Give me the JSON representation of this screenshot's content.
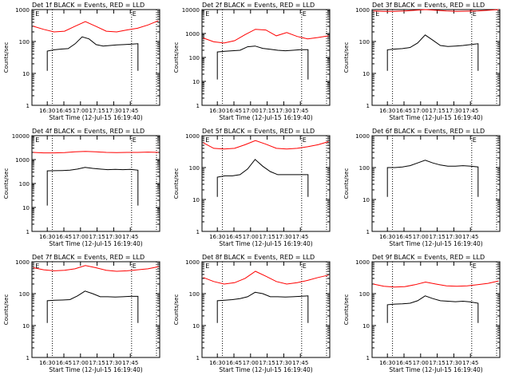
{
  "chart_data": [
    {
      "type": "line",
      "title": "Det 1f BLACK = Events, RED = LLD",
      "xlabel": "Start Time (12-Jul-15 16:19:40)",
      "ylabel": "Counts/sec",
      "yscale": "log",
      "ylim": [
        1,
        1000
      ],
      "xticks": [
        "16:30",
        "16:45",
        "17:00",
        "17:15",
        "17:30",
        "17:45"
      ],
      "annotations": [
        "E",
        "E"
      ],
      "series": [
        {
          "name": "Events",
          "color": "#000000",
          "values": [
            50,
            55,
            58,
            60,
            85,
            140,
            120,
            80,
            72,
            75,
            78,
            80,
            82,
            85
          ]
        },
        {
          "name": "LLD",
          "color": "#ff0000",
          "values": [
            300,
            240,
            200,
            210,
            300,
            420,
            300,
            210,
            200,
            230,
            260,
            330,
            450
          ]
        }
      ]
    },
    {
      "type": "line",
      "title": "Det 2f BLACK = Events, RED = LLD",
      "xlabel": "Start Time (12-Jul-15 16:19:40)",
      "ylabel": "Counts/sec",
      "yscale": "log",
      "ylim": [
        1,
        10000
      ],
      "xticks": [
        "16:30",
        "16:45",
        "17:00",
        "17:15",
        "17:30",
        "17:45"
      ],
      "annotations": [
        "E",
        "E"
      ],
      "series": [
        {
          "name": "Events",
          "color": "#000000",
          "values": [
            170,
            180,
            190,
            200,
            280,
            300,
            240,
            220,
            200,
            190,
            200,
            210,
            210
          ]
        },
        {
          "name": "LLD",
          "color": "#ff0000",
          "values": [
            650,
            450,
            400,
            500,
            900,
            1500,
            1400,
            800,
            1100,
            750,
            600,
            680,
            800
          ]
        }
      ]
    },
    {
      "type": "line",
      "title": "Det 3f BLACK = Events, RED = LLD",
      "xlabel": "Start Time (12-Jul-15 16:19:40)",
      "ylabel": "Counts/sec",
      "yscale": "log",
      "ylim": [
        1,
        1000
      ],
      "xticks": [
        "16:30",
        "16:45",
        "17:00",
        "17:15",
        "17:30",
        "17:45"
      ],
      "annotations": [
        "E",
        "E"
      ],
      "series": [
        {
          "name": "Events",
          "color": "#000000",
          "values": [
            55,
            58,
            60,
            65,
            90,
            160,
            110,
            75,
            70,
            72,
            75,
            80,
            85
          ]
        },
        {
          "name": "LLD",
          "color": "#ff0000",
          "values": [
            900,
            880,
            880,
            900,
            950,
            1000,
            950,
            900,
            880,
            890,
            900,
            950,
            1000
          ]
        }
      ]
    },
    {
      "type": "line",
      "title": "Det 4f BLACK = Events, RED = LLD",
      "xlabel": "Start Time (12-Jul-15 16:19:40)",
      "ylabel": "Counts/sec",
      "yscale": "log",
      "ylim": [
        1,
        10000
      ],
      "xticks": [
        "16:30",
        "16:45",
        "17:00",
        "17:15",
        "17:30",
        "17:45"
      ],
      "annotations": [
        "E",
        "E"
      ],
      "series": [
        {
          "name": "Events",
          "color": "#000000",
          "values": [
            340,
            345,
            350,
            360,
            400,
            470,
            430,
            400,
            380,
            390,
            380,
            390,
            360
          ]
        },
        {
          "name": "LLD",
          "color": "#ff0000",
          "values": [
            2000,
            1900,
            1900,
            1950,
            2100,
            2200,
            2100,
            2000,
            1950,
            2000,
            2000,
            2050,
            2000
          ]
        }
      ]
    },
    {
      "type": "line",
      "title": "Det 5f BLACK = Events, RED = LLD",
      "xlabel": "Start Time (12-Jul-15 16:19:40)",
      "ylabel": "Counts/sec",
      "yscale": "log",
      "ylim": [
        1,
        1000
      ],
      "xticks": [
        "16:30",
        "16:45",
        "17:00",
        "17:15",
        "17:30",
        "17:45"
      ],
      "annotations": [
        "E",
        "E"
      ],
      "series": [
        {
          "name": "Events",
          "color": "#000000",
          "values": [
            50,
            55,
            55,
            60,
            90,
            180,
            110,
            75,
            60,
            60,
            60,
            60,
            60
          ]
        },
        {
          "name": "LLD",
          "color": "#ff0000",
          "values": [
            600,
            400,
            380,
            400,
            520,
            700,
            540,
            400,
            380,
            400,
            450,
            520,
            650
          ]
        }
      ]
    },
    {
      "type": "line",
      "title": "Det 6f BLACK = Events, RED = LLD",
      "xlabel": "Start Time (12-Jul-15 16:19:40)",
      "ylabel": "Counts/sec",
      "yscale": "log",
      "ylim": [
        1,
        1000
      ],
      "xticks": [
        "16:30",
        "16:45",
        "17:00",
        "17:15",
        "17:30",
        "17:45"
      ],
      "annotations": [
        "E"
      ],
      "series": [
        {
          "name": "Events",
          "color": "#000000",
          "values": [
            100,
            100,
            105,
            115,
            140,
            170,
            140,
            120,
            110,
            110,
            115,
            110,
            105
          ]
        }
      ]
    },
    {
      "type": "line",
      "title": "Det 7f BLACK = Events, RED = LLD",
      "xlabel": "Start Time (12-Jul-15 16:19:40)",
      "ylabel": "Counts/sec",
      "yscale": "log",
      "ylim": [
        1,
        1000
      ],
      "xticks": [
        "16:30",
        "16:45",
        "17:00",
        "17:15",
        "17:30",
        "17:45"
      ],
      "annotations": [
        "E",
        "E"
      ],
      "series": [
        {
          "name": "Events",
          "color": "#000000",
          "values": [
            60,
            62,
            63,
            65,
            85,
            120,
            100,
            80,
            80,
            78,
            80,
            82,
            82
          ]
        },
        {
          "name": "LLD",
          "color": "#ff0000",
          "values": [
            650,
            560,
            520,
            540,
            600,
            760,
            650,
            540,
            500,
            520,
            560,
            600,
            700
          ]
        }
      ]
    },
    {
      "type": "line",
      "title": "Det 8f BLACK = Events, RED = LLD",
      "xlabel": "Start Time (12-Jul-15 16:19:40)",
      "ylabel": "Counts/sec",
      "yscale": "log",
      "ylim": [
        1,
        1000
      ],
      "xticks": [
        "16:30",
        "16:45",
        "17:00",
        "17:15",
        "17:30",
        "17:45"
      ],
      "annotations": [
        "E",
        "E"
      ],
      "series": [
        {
          "name": "Events",
          "color": "#000000",
          "values": [
            60,
            62,
            65,
            70,
            80,
            110,
            100,
            80,
            80,
            78,
            80,
            82,
            85
          ]
        },
        {
          "name": "LLD",
          "color": "#ff0000",
          "values": [
            320,
            240,
            200,
            220,
            300,
            500,
            350,
            240,
            200,
            220,
            260,
            320,
            380
          ]
        }
      ]
    },
    {
      "type": "line",
      "title": "Det 9f BLACK = Events, RED = LLD",
      "xlabel": "Start Time (12-Jul-15 16:19:40)",
      "ylabel": "Counts/sec",
      "yscale": "log",
      "ylim": [
        1,
        1000
      ],
      "xticks": [
        "16:30",
        "16:45",
        "17:00",
        "17:15",
        "17:30",
        "17:45"
      ],
      "annotations": [
        "E"
      ],
      "series": [
        {
          "name": "Events",
          "color": "#000000",
          "values": [
            45,
            47,
            48,
            50,
            60,
            85,
            70,
            60,
            58,
            56,
            58,
            55,
            50
          ]
        },
        {
          "name": "LLD",
          "color": "#ff0000",
          "values": [
            200,
            170,
            160,
            165,
            190,
            230,
            200,
            175,
            170,
            175,
            190,
            210,
            250
          ]
        }
      ]
    }
  ]
}
